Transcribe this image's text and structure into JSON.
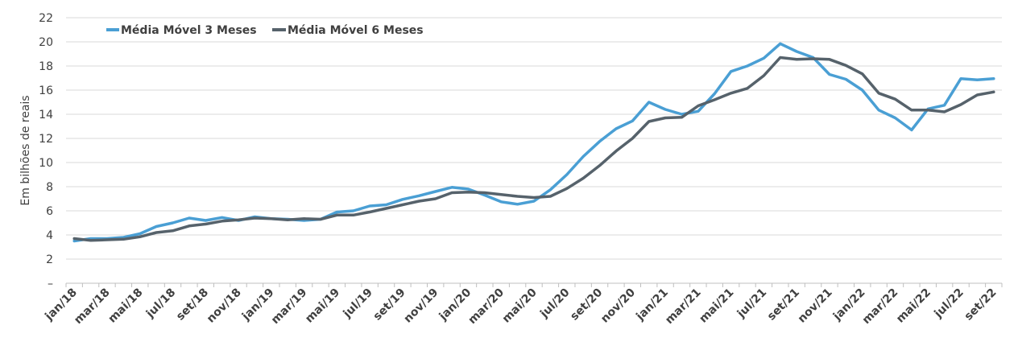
{
  "chart_data": {
    "type": "line",
    "ylabel": "Em bilhões de reais",
    "xlabel": "",
    "ylim": [
      0,
      22
    ],
    "yticks": [
      0,
      2,
      4,
      6,
      8,
      10,
      12,
      14,
      16,
      18,
      20,
      22
    ],
    "ytick_labels": [
      "–",
      "2",
      "4",
      "6",
      "8",
      "10",
      "12",
      "14",
      "16",
      "18",
      "20",
      "22"
    ],
    "grid": "horizontal",
    "legend_position": "top-left",
    "x": [
      "jan/18",
      "fev/18",
      "mar/18",
      "abr/18",
      "mai/18",
      "jun/18",
      "jul/18",
      "ago/18",
      "set/18",
      "out/18",
      "nov/18",
      "dez/18",
      "jan/19",
      "fev/19",
      "mar/19",
      "abr/19",
      "mai/19",
      "jun/19",
      "jul/19",
      "ago/19",
      "set/19",
      "out/19",
      "nov/19",
      "dez/19",
      "jan/20",
      "fev/20",
      "mar/20",
      "abr/20",
      "mai/20",
      "jun/20",
      "jul/20",
      "ago/20",
      "set/20",
      "out/20",
      "nov/20",
      "dez/20",
      "jan/21",
      "fev/21",
      "mar/21",
      "abr/21",
      "mai/21",
      "jun/21",
      "jul/21",
      "ago/21",
      "set/21",
      "out/21",
      "nov/21",
      "dez/21",
      "jan/22",
      "fev/22",
      "mar/22",
      "abr/22",
      "mai/22",
      "jun/22",
      "jul/22",
      "ago/22",
      "set/22"
    ],
    "x_tick_labels": [
      "jan/18",
      "mar/18",
      "mai/18",
      "jul/18",
      "set/18",
      "nov/18",
      "jan/19",
      "mar/19",
      "mai/19",
      "jul/19",
      "set/19",
      "nov/19",
      "jan/20",
      "mar/20",
      "mai/20",
      "jul/20",
      "set/20",
      "nov/20",
      "jan/21",
      "mar/21",
      "mai/21",
      "jul/21",
      "set/21",
      "nov/21",
      "jan/22",
      "mar/22",
      "mai/22",
      "jul/22",
      "set/22"
    ],
    "series": [
      {
        "name": "Média Móvel 3 Meses",
        "color": "#4a9fd4",
        "values": [
          3.5,
          3.7,
          3.7,
          3.8,
          4.1,
          4.7,
          5.0,
          5.4,
          5.2,
          5.45,
          5.2,
          5.5,
          5.35,
          5.3,
          5.2,
          5.3,
          5.9,
          6.0,
          6.4,
          6.5,
          6.95,
          7.25,
          7.6,
          7.95,
          7.8,
          7.3,
          6.75,
          6.55,
          6.8,
          7.75,
          9.0,
          10.5,
          11.75,
          12.8,
          13.45,
          15.0,
          14.4,
          14.0,
          14.25,
          15.7,
          17.55,
          18.0,
          18.65,
          19.85,
          19.2,
          18.7,
          17.3,
          16.9,
          16.0,
          14.35,
          13.7,
          12.7,
          14.45,
          14.75,
          16.95,
          16.85,
          16.95
        ]
      },
      {
        "name": "Média Móvel 6 Meses",
        "color": "#56626b",
        "values": [
          3.7,
          3.55,
          3.6,
          3.65,
          3.85,
          4.2,
          4.35,
          4.75,
          4.9,
          5.15,
          5.25,
          5.4,
          5.35,
          5.25,
          5.35,
          5.3,
          5.65,
          5.65,
          5.9,
          6.2,
          6.5,
          6.8,
          7.0,
          7.5,
          7.55,
          7.5,
          7.35,
          7.2,
          7.1,
          7.2,
          7.85,
          8.7,
          9.75,
          10.95,
          12.0,
          13.4,
          13.7,
          13.75,
          14.7,
          15.2,
          15.75,
          16.15,
          17.2,
          18.7,
          18.55,
          18.6,
          18.55,
          18.05,
          17.35,
          15.75,
          15.25,
          14.35,
          14.35,
          14.2,
          14.8,
          15.6,
          15.85
        ]
      }
    ]
  }
}
